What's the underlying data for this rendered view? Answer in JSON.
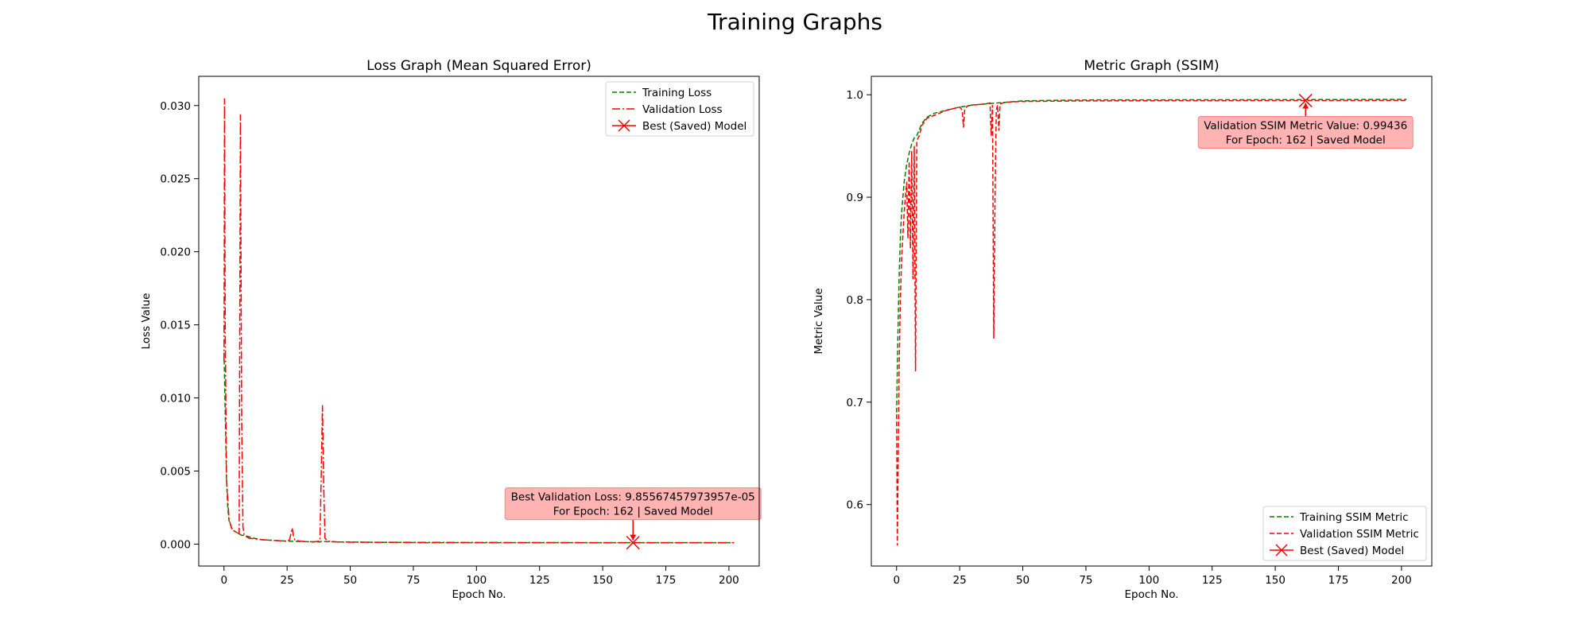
{
  "figure": {
    "title": "Training Graphs"
  },
  "chart_data": [
    {
      "type": "line",
      "title": "Loss Graph (Mean Squared Error)",
      "xlabel": "Epoch No.",
      "ylabel": "Loss Value",
      "xlim": [
        -10,
        212
      ],
      "ylim": [
        -0.0015,
        0.032
      ],
      "xticks": [
        0,
        25,
        50,
        75,
        100,
        125,
        150,
        175,
        200
      ],
      "yticks": [
        0.0,
        0.005,
        0.01,
        0.015,
        0.02,
        0.025,
        0.03
      ],
      "ytick_labels": [
        "0.000",
        "0.005",
        "0.010",
        "0.015",
        "0.020",
        "0.025",
        "0.030"
      ],
      "legend_position": "upper-right",
      "series": [
        {
          "name": "Training Loss",
          "color": "#008000",
          "style": "dashed",
          "x": [
            0,
            0.5,
            1,
            1.5,
            2,
            3,
            4,
            5,
            6,
            7,
            8,
            10,
            12,
            15,
            20,
            25,
            30,
            38,
            39,
            40,
            45,
            50,
            60,
            80,
            100,
            150,
            200,
            202
          ],
          "y": [
            0.0131,
            0.009,
            0.0045,
            0.0025,
            0.0016,
            0.0011,
            0.0009,
            0.0008,
            0.0007,
            0.0006,
            0.0006,
            0.0005,
            0.0004,
            0.0003,
            0.00025,
            0.0002,
            0.00018,
            0.00015,
            0.00022,
            0.00017,
            0.00015,
            0.00014,
            0.00012,
            0.0001,
            0.0001,
            0.0001,
            0.0001,
            0.0001
          ]
        },
        {
          "name": "Validation Loss",
          "color": "#ff0000",
          "style": "dashdot",
          "x": [
            0,
            0.2,
            0.5,
            1,
            2,
            3,
            4,
            5,
            6,
            6.5,
            7,
            7.5,
            8,
            9,
            10,
            15,
            20,
            25,
            26,
            27,
            27.5,
            28,
            30,
            35,
            38,
            38.5,
            39,
            39.5,
            40,
            41,
            45,
            50,
            75,
            100,
            150,
            200,
            202
          ],
          "y": [
            0.0125,
            0.0305,
            0.0148,
            0.0045,
            0.0017,
            0.0011,
            0.0009,
            0.0008,
            0.0007,
            0.0294,
            0.0085,
            0.0012,
            0.0006,
            0.0005,
            0.0004,
            0.0003,
            0.00025,
            0.0002,
            0.0003,
            0.0011,
            0.0006,
            0.0003,
            0.0002,
            0.00015,
            0.0002,
            0.0045,
            0.0095,
            0.004,
            0.0004,
            0.0002,
            0.00015,
            0.00013,
            0.00012,
            0.00011,
            0.0001,
            0.0001,
            0.0001
          ]
        }
      ],
      "best_marker": {
        "name": "Best (Saved) Model",
        "x": 162,
        "y": 9.85567e-05
      },
      "annotation": {
        "lines": [
          "Best Validation Loss: 9.85567457973957e-05",
          "For Epoch: 162 | Saved Model"
        ]
      }
    },
    {
      "type": "line",
      "title": "Metric Graph (SSIM)",
      "xlabel": "Epoch No.",
      "ylabel": "Metric Value",
      "xlim": [
        -10,
        212
      ],
      "ylim": [
        0.54,
        1.018
      ],
      "xticks": [
        0,
        25,
        50,
        75,
        100,
        125,
        150,
        175,
        200
      ],
      "yticks": [
        0.6,
        0.7,
        0.8,
        0.9,
        1.0
      ],
      "ytick_labels": [
        "0.6",
        "0.7",
        "0.8",
        "0.9",
        "1.0"
      ],
      "legend_position": "lower-right",
      "series": [
        {
          "name": "Training SSIM Metric",
          "color": "#008000",
          "style": "dashed",
          "x": [
            0,
            0.5,
            1,
            1.5,
            2,
            3,
            4,
            5,
            6,
            7,
            8,
            10,
            12,
            15,
            20,
            25,
            30,
            35,
            40,
            45,
            50,
            60,
            80,
            100,
            150,
            200,
            202
          ],
          "y": [
            0.69,
            0.76,
            0.82,
            0.86,
            0.885,
            0.915,
            0.932,
            0.943,
            0.952,
            0.958,
            0.96,
            0.972,
            0.978,
            0.982,
            0.985,
            0.988,
            0.99,
            0.991,
            0.992,
            0.993,
            0.994,
            0.9945,
            0.995,
            0.995,
            0.9952,
            0.9954,
            0.9954
          ]
        },
        {
          "name": "Validation SSIM Metric",
          "color": "#ff0000",
          "style": "dashed",
          "x": [
            0,
            0.3,
            1,
            1.5,
            2,
            3,
            4,
            4.5,
            5,
            5.5,
            6,
            6.5,
            7,
            7.5,
            8,
            9,
            10,
            12,
            15,
            20,
            25,
            26,
            26.5,
            27,
            28,
            30,
            35,
            37,
            37.5,
            38,
            38.5,
            39,
            39.5,
            40,
            40.5,
            41,
            42,
            45,
            50,
            75,
            100,
            150,
            162,
            200,
            202
          ],
          "y": [
            0.688,
            0.56,
            0.73,
            0.8,
            0.84,
            0.885,
            0.915,
            0.86,
            0.935,
            0.85,
            0.945,
            0.82,
            0.95,
            0.73,
            0.955,
            0.96,
            0.97,
            0.977,
            0.98,
            0.985,
            0.988,
            0.985,
            0.968,
            0.986,
            0.989,
            0.99,
            0.991,
            0.992,
            0.96,
            0.99,
            0.762,
            0.9,
            0.985,
            0.99,
            0.965,
            0.991,
            0.992,
            0.993,
            0.9935,
            0.994,
            0.9942,
            0.9943,
            0.99436,
            0.9944,
            0.9944
          ]
        }
      ],
      "best_marker": {
        "name": "Best (Saved) Model",
        "x": 162,
        "y": 0.99436
      },
      "annotation": {
        "lines": [
          "Validation SSIM Metric Value: 0.99436",
          "For Epoch: 162 | Saved Model"
        ]
      }
    }
  ]
}
